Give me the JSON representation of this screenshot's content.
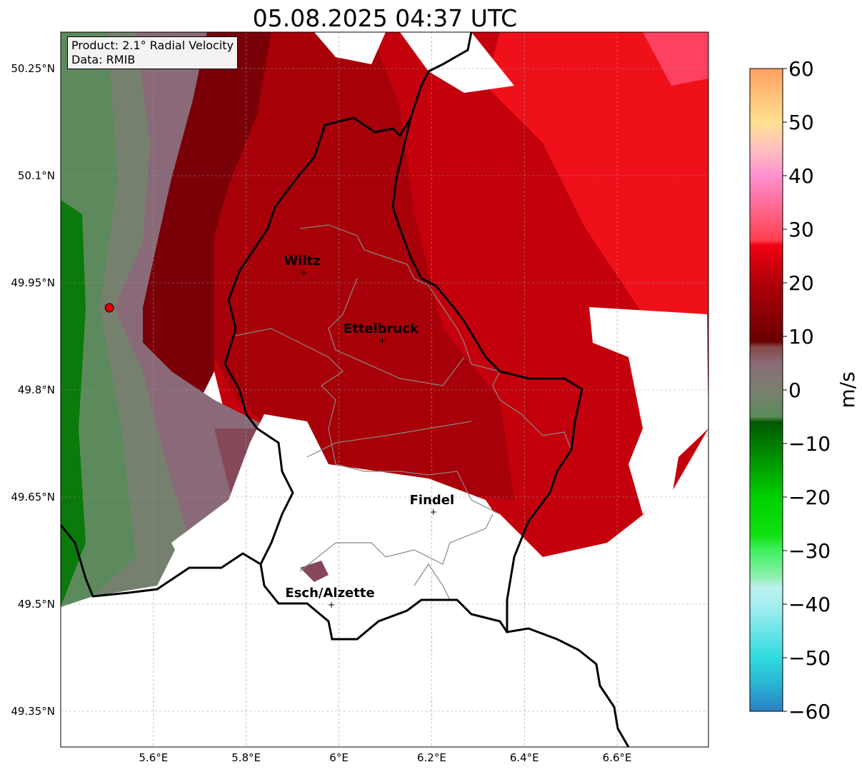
{
  "title": "05.08.2025 04:37 UTC",
  "info_box": {
    "product": "Product: 2.1° Radial Velocity",
    "data": "Data: RMIB"
  },
  "axes": {
    "lon_range": [
      5.4,
      6.797
    ],
    "lat_range": [
      49.3,
      50.301
    ],
    "lon_ticks": [
      {
        "v": 5.6,
        "label": "5.6°E"
      },
      {
        "v": 5.8,
        "label": "5.8°E"
      },
      {
        "v": 6.0,
        "label": "6°E"
      },
      {
        "v": 6.2,
        "label": "6.2°E"
      },
      {
        "v": 6.4,
        "label": "6.4°E"
      },
      {
        "v": 6.6,
        "label": "6.6°E"
      }
    ],
    "lat_ticks": [
      {
        "v": 50.25,
        "label": "50.25°N"
      },
      {
        "v": 50.1,
        "label": "50.1°N"
      },
      {
        "v": 49.95,
        "label": "49.95°N"
      },
      {
        "v": 49.8,
        "label": "49.8°N"
      },
      {
        "v": 49.65,
        "label": "49.65°N"
      },
      {
        "v": 49.5,
        "label": "49.5°N"
      },
      {
        "v": 49.35,
        "label": "49.35°N"
      }
    ]
  },
  "cities": [
    {
      "name": "Wiltz",
      "lon": 5.93,
      "lat": 49.965
    },
    {
      "name": "Ettelbruck",
      "lon": 6.1,
      "lat": 49.87
    },
    {
      "name": "Findel",
      "lon": 6.21,
      "lat": 49.63
    },
    {
      "name": "Esch/Alzette",
      "lon": 5.99,
      "lat": 49.5
    }
  ],
  "radar_site": {
    "lon": 5.505,
    "lat": 49.915
  },
  "colorbar": {
    "label": "m/s",
    "range": [
      -60,
      60
    ],
    "ticks": [
      {
        "v": 60,
        "label": "60"
      },
      {
        "v": 50,
        "label": "50"
      },
      {
        "v": 40,
        "label": "40"
      },
      {
        "v": 30,
        "label": "30"
      },
      {
        "v": 20,
        "label": "20"
      },
      {
        "v": 10,
        "label": "10"
      },
      {
        "v": 0,
        "label": "0"
      },
      {
        "v": -10,
        "label": "−10"
      },
      {
        "v": -20,
        "label": "−20"
      },
      {
        "v": -30,
        "label": "−30"
      },
      {
        "v": -40,
        "label": "−40"
      },
      {
        "v": -50,
        "label": "−50"
      },
      {
        "v": -60,
        "label": "−60"
      }
    ],
    "stops": [
      {
        "v": -60,
        "c": "#2a80c4"
      },
      {
        "v": -55,
        "c": "#29b4d4"
      },
      {
        "v": -50,
        "c": "#2fdbe0"
      },
      {
        "v": -40,
        "c": "#a8eef0"
      },
      {
        "v": -37,
        "c": "#bdf0f0"
      },
      {
        "v": -35,
        "c": "#90f0b0"
      },
      {
        "v": -30,
        "c": "#40f060"
      },
      {
        "v": -27,
        "c": "#10e010"
      },
      {
        "v": -20,
        "c": "#00d000"
      },
      {
        "v": -10,
        "c": "#007a00"
      },
      {
        "v": -6,
        "c": "#005800"
      },
      {
        "v": -5,
        "c": "#5a8a5a"
      },
      {
        "v": 0,
        "c": "#7a8070"
      },
      {
        "v": 5,
        "c": "#8a6a78"
      },
      {
        "v": 8,
        "c": "#884848"
      },
      {
        "v": 9,
        "c": "#6a0000"
      },
      {
        "v": 20,
        "c": "#b00008"
      },
      {
        "v": 27,
        "c": "#f00010"
      },
      {
        "v": 28,
        "c": "#ff4050"
      },
      {
        "v": 40,
        "c": "#ff90d0"
      },
      {
        "v": 45,
        "c": "#ffc0c0"
      },
      {
        "v": 50,
        "c": "#ffe090"
      },
      {
        "v": 60,
        "c": "#ffa060"
      }
    ]
  }
}
